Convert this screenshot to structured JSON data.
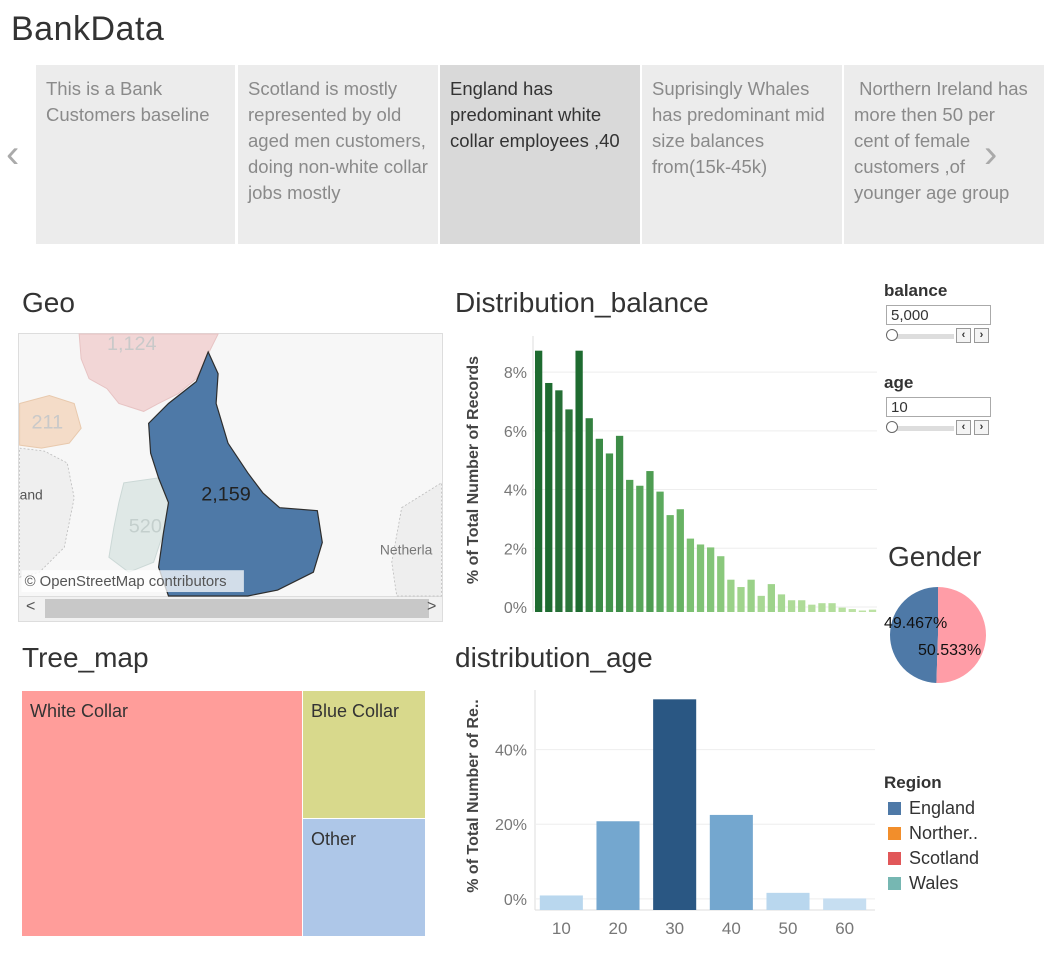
{
  "app": {
    "title": "BankData"
  },
  "story": {
    "points": [
      "This is a Bank Customers baseline",
      "Scotland is mostly represented by old aged men customers, doing non-white collar jobs mostly",
      "England has predominant white collar employees ,40",
      "Suprisingly Whales has predominant mid size balances from(15k-45k)",
      " Northern Ireland has more then 50 per cent of female customers ,of younger age group"
    ],
    "active_index": 2,
    "prev_icon": "chevron-left-icon",
    "next_icon": "chevron-right-icon"
  },
  "geo": {
    "title": "Geo",
    "attribution": "© OpenStreetMap contributors",
    "labels": {
      "scotland": "1,124",
      "northern_ireland": "211",
      "england": "2,159",
      "wales": "520",
      "ireland": "and",
      "netherlands": "Netherla"
    },
    "scroll_left": "<",
    "scroll_right": ">"
  },
  "tree_map": {
    "title": "Tree_map",
    "cells": [
      {
        "label": "White Collar",
        "color": "#ff9d9a"
      },
      {
        "label": "Blue Collar",
        "color": "#d8d98c"
      },
      {
        "label": "Other",
        "color": "#aec7e8"
      }
    ]
  },
  "chart_data": [
    {
      "type": "bar",
      "title": "Distribution_balance",
      "ylabel": "% of Total Number of Records",
      "ytick_labels": [
        "0%",
        "2%",
        "4%",
        "6%",
        "8%"
      ],
      "ylim": [
        0,
        9.4
      ],
      "values": [
        8.9,
        7.8,
        7.55,
        6.9,
        8.9,
        6.6,
        5.9,
        5.4,
        6.0,
        4.5,
        4.3,
        4.8,
        4.1,
        3.3,
        3.5,
        2.5,
        2.3,
        2.2,
        1.9,
        1.1,
        0.85,
        1.1,
        0.55,
        0.95,
        0.6,
        0.4,
        0.4,
        0.25,
        0.3,
        0.3,
        0.15,
        0.1,
        0.05,
        0.08
      ],
      "colors": [
        "#1e6b30",
        "#1e6b30",
        "#266f36",
        "#2c763b",
        "#1e6b30",
        "#33803f",
        "#3a8a45",
        "#43934b",
        "#3d8c47",
        "#52a055",
        "#58a55a",
        "#4e9c52",
        "#5ba95d",
        "#6bb566",
        "#67b263",
        "#7cc072",
        "#80c275",
        "#83c478",
        "#8ac87c",
        "#9ad188",
        "#a0d48c",
        "#9ad188",
        "#a8d894",
        "#9ed38b",
        "#a7d893",
        "#aedb98",
        "#aedb98",
        "#b4de9d",
        "#b2dd9b",
        "#b2dd9b",
        "#b8e0a0",
        "#bbe1a3",
        "#bde2a5",
        "#bce2a4"
      ]
    },
    {
      "type": "bar",
      "title": "distribution_age",
      "ylabel": "% of Total Number of Re..",
      "categories": [
        "10",
        "20",
        "30",
        "40",
        "50",
        "60"
      ],
      "values": [
        0.9,
        20.8,
        53.5,
        22.5,
        1.6,
        0.1
      ],
      "ytick_labels": [
        "0%",
        "20%",
        "40%"
      ],
      "ylim": [
        -3.0,
        56.0
      ],
      "colors": [
        "#b9d7ee",
        "#74a7cf",
        "#2a5783",
        "#74a7cf",
        "#b9d7ee",
        "#c6def1"
      ]
    },
    {
      "type": "pie",
      "title": "Gender",
      "slices": [
        {
          "label": "49.467%",
          "value": 49.467,
          "color": "#4e79a7"
        },
        {
          "label": "50.533%",
          "value": 50.533,
          "color": "#ff9da7"
        }
      ]
    }
  ],
  "filters": {
    "balance": {
      "label": "balance",
      "value": "5,000"
    },
    "age": {
      "label": "age",
      "value": "10"
    }
  },
  "legend": {
    "title": "Region",
    "items": [
      {
        "label": "England",
        "color": "#4e79a7"
      },
      {
        "label": "Norther..",
        "color": "#f28e2b"
      },
      {
        "label": "Scotland",
        "color": "#e15759"
      },
      {
        "label": "Wales",
        "color": "#76b7b2"
      }
    ]
  }
}
